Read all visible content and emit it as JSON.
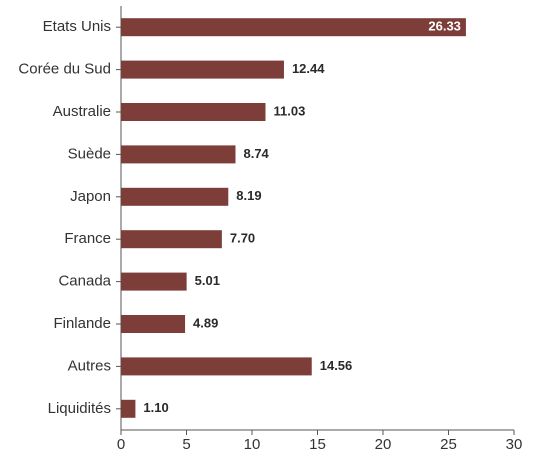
{
  "chart_data": {
    "type": "bar",
    "orientation": "horizontal",
    "categories": [
      "Etats Unis",
      "Corée du Sud",
      "Australie",
      "Suède",
      "Japon",
      "France",
      "Canada",
      "Finlande",
      "Autres",
      "Liquidités"
    ],
    "values": [
      26.33,
      12.44,
      11.03,
      8.74,
      8.19,
      7.7,
      5.01,
      4.89,
      14.56,
      1.1
    ],
    "value_labels": [
      "26.33",
      "12.44",
      "11.03",
      "8.74",
      "8.19",
      "7.70",
      "5.01",
      "4.89",
      "14.56",
      "1.10"
    ],
    "color": "#7d3e39",
    "xlim": [
      0,
      30
    ],
    "xticks": [
      0,
      5,
      10,
      15,
      20,
      25,
      30
    ]
  }
}
